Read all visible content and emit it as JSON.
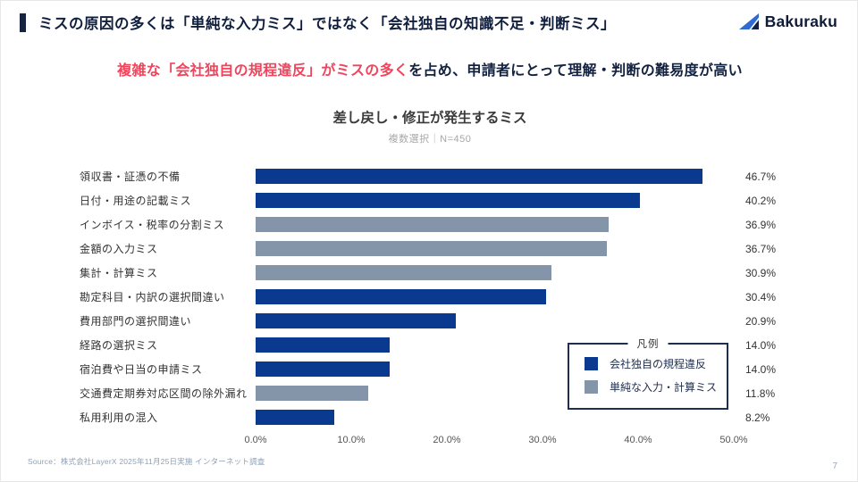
{
  "slide": {
    "title": "ミスの原因の多くは「単純な入力ミス」ではなく「会社独自の知識不足・判断ミス」",
    "subtitle_highlight": "複雑な「会社独自の規程違反」がミスの多く",
    "subtitle_rest": "を占め、申請者にとって理解・判断の難易度が高い",
    "logo_text": "Bakuraku",
    "source": "Source：株式会社LayerX 2025年11月25日実施 インターネット調査",
    "page_number": "7"
  },
  "chart_data": {
    "type": "bar",
    "orientation": "horizontal",
    "title": "差し戻し・修正が発生するミス",
    "note": "複数選択｜N=450",
    "xlabel": "",
    "ylabel": "",
    "xlim": [
      0,
      50
    ],
    "grid": false,
    "x_ticks": [
      "0.0%",
      "10.0%",
      "20.0%",
      "30.0%",
      "40.0%",
      "50.0%"
    ],
    "x_tick_values": [
      0,
      10,
      20,
      30,
      40,
      50
    ],
    "bars": [
      {
        "label": "領収書・証憑の不備",
        "value": 46.7,
        "display": "46.7%",
        "series": 0
      },
      {
        "label": "日付・用途の記載ミス",
        "value": 40.2,
        "display": "40.2%",
        "series": 0
      },
      {
        "label": "インボイス・税率の分割ミス",
        "value": 36.9,
        "display": "36.9%",
        "series": 1
      },
      {
        "label": "金額の入力ミス",
        "value": 36.7,
        "display": "36.7%",
        "series": 1
      },
      {
        "label": "集計・計算ミス",
        "value": 30.9,
        "display": "30.9%",
        "series": 1
      },
      {
        "label": "勘定科目・内訳の選択間違い",
        "value": 30.4,
        "display": "30.4%",
        "series": 0
      },
      {
        "label": "費用部門の選択間違い",
        "value": 20.9,
        "display": "20.9%",
        "series": 0
      },
      {
        "label": "経路の選択ミス",
        "value": 14.0,
        "display": "14.0%",
        "series": 0
      },
      {
        "label": "宿泊費や日当の申請ミス",
        "value": 14.0,
        "display": "14.0%",
        "series": 0
      },
      {
        "label": "交通費定期券対応区間の除外漏れ",
        "value": 11.8,
        "display": "11.8%",
        "series": 1
      },
      {
        "label": "私用利用の混入",
        "value": 8.2,
        "display": "8.2%",
        "series": 0
      }
    ],
    "legend": {
      "title": "凡例",
      "position": "inside-bottom-right",
      "items": [
        {
          "label": "会社独自の規程違反",
          "color": "#0a3a8f"
        },
        {
          "label": "単純な入力・計算ミス",
          "color": "#8494a9"
        }
      ]
    },
    "colors": {
      "accent_navy": "#17233f",
      "highlight_red": "#f0455c",
      "title_navy": "#101f3d"
    }
  }
}
